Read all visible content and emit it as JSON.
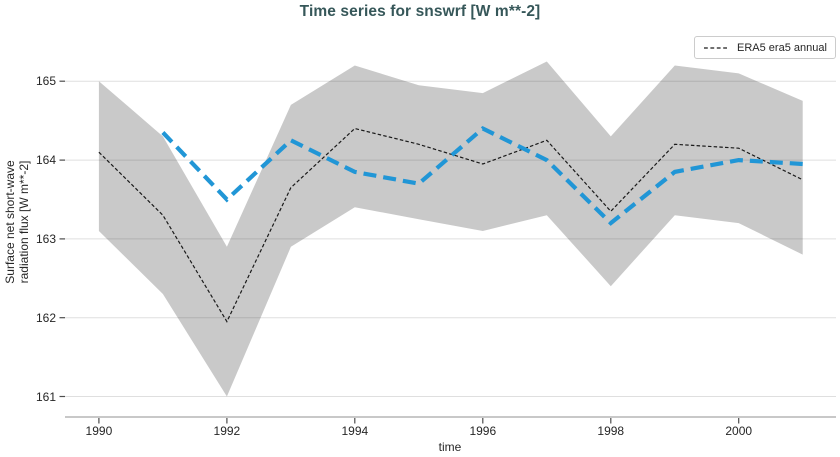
{
  "labels": {
    "ylabel_line1": "Surface net short-wave",
    "ylabel_line2": "radiation flux [W m**-2]"
  },
  "theme": {
    "background": "#ffffff",
    "title_color": "#365759",
    "text_color": "#262626",
    "grid_color": "rgba(38,38,38,0.15)",
    "spine_color": "#c8c8c8",
    "tick_mark_color": "#4d4d4d",
    "band_color": "#c9c9c9",
    "legend_border_color": "#cccccc",
    "accent_blue": "#2196d6",
    "line_black": "#1a1a1a"
  },
  "chart_data": {
    "type": "line",
    "title": "Time series for snswrf [W m**-2]",
    "xlabel": "time",
    "ylabel": "Surface net short-wave radiation flux [W m**-2]",
    "x_ticks": [
      1990,
      1992,
      1994,
      1996,
      1998,
      2000
    ],
    "y_ticks": [
      161,
      162,
      163,
      164,
      165
    ],
    "x_range": [
      1989.47,
      2001.52
    ],
    "y_range": [
      160.74,
      165.65
    ],
    "grid": "horizontal-only",
    "legend": {
      "position": "upper right",
      "entries": [
        "ERA5 era5 annual"
      ]
    },
    "series": [
      {
        "name": "ERA5 era5 annual",
        "color": "#1a1a1a",
        "line_style": "dashed",
        "line_width": 1.2,
        "x": [
          1990,
          1991,
          1992,
          1993,
          1994,
          1995,
          1996,
          1997,
          1998,
          1999,
          2000,
          2001
        ],
        "values": [
          164.1,
          163.3,
          161.95,
          163.65,
          164.4,
          164.2,
          163.95,
          164.25,
          163.35,
          164.2,
          164.15,
          163.75
        ]
      },
      {
        "name": "",
        "color": "#2196d6",
        "line_style": "dashed",
        "line_width": 4.2,
        "x": [
          1991,
          1992,
          1993,
          1994,
          1995,
          1996,
          1997,
          1998,
          1999,
          2000,
          2001
        ],
        "values": [
          164.35,
          163.5,
          164.25,
          163.85,
          163.7,
          164.4,
          164.0,
          163.2,
          163.85,
          164.0,
          163.95
        ]
      }
    ],
    "band": {
      "series": "ERA5 era5 annual",
      "color": "#c9c9c9",
      "x": [
        1990,
        1991,
        1992,
        1993,
        1994,
        1995,
        1996,
        1997,
        1998,
        1999,
        2000,
        2001
      ],
      "lower": [
        163.1,
        162.3,
        161.0,
        162.9,
        163.4,
        163.25,
        163.1,
        163.3,
        162.4,
        163.3,
        163.2,
        162.8
      ],
      "upper": [
        165.0,
        164.3,
        162.9,
        164.7,
        165.2,
        164.95,
        164.85,
        165.25,
        164.3,
        165.2,
        165.1,
        164.75
      ]
    }
  }
}
